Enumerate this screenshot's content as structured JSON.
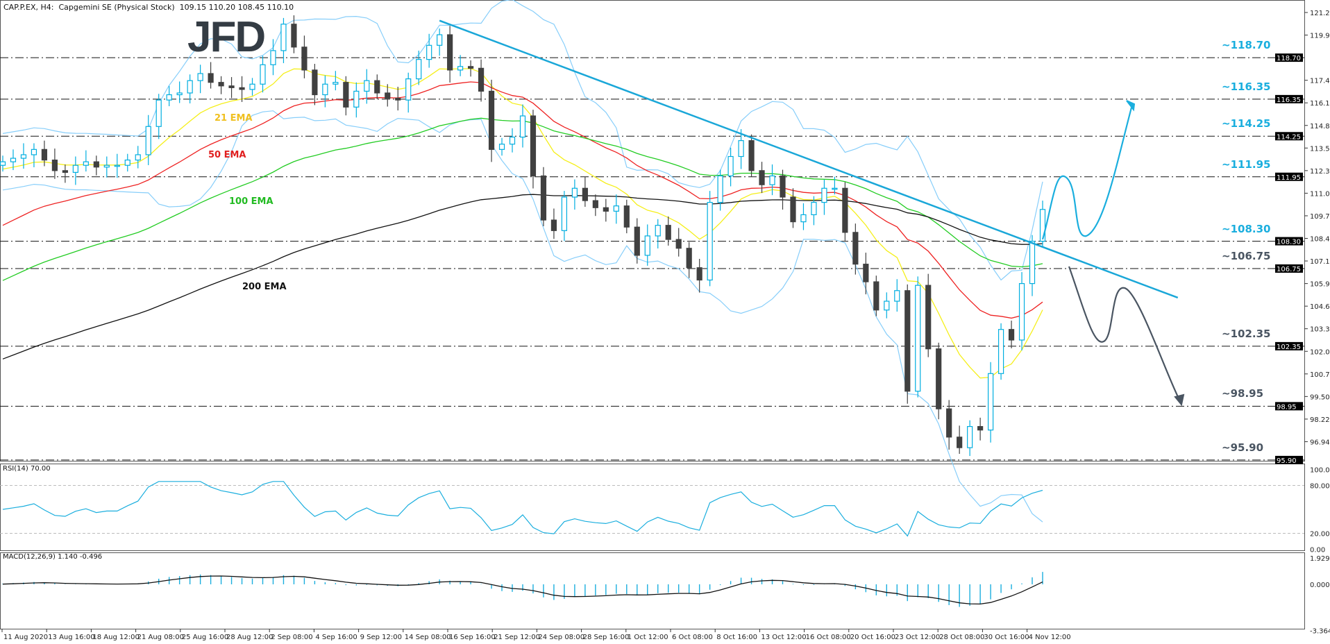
{
  "header": {
    "title": "CAP.P.EX, H4:  Capgemini SE (Physical Stock)  109.15 110.20 108.45 110.10"
  },
  "logo": "JFD",
  "colors": {
    "up": "#00aee0",
    "down": "#404040",
    "bands": "#87cefa",
    "trend": "#1aa7d8",
    "bear": "#4a5562",
    "ema21": "#f5ef1a",
    "ema50": "#ee2222",
    "ema100": "#22cc22",
    "ema200": "#111111"
  },
  "chart_data": {
    "type": "candlestick",
    "timeframe": "H4",
    "ylim": [
      95.4,
      121.8
    ],
    "price_ticks": [
      121.26,
      119.98,
      117.42,
      116.14,
      114.86,
      113.58,
      112.3,
      111.02,
      109.74,
      108.46,
      107.18,
      105.9,
      104.62,
      103.34,
      102.06,
      100.78,
      99.5,
      98.22,
      96.94
    ],
    "x_labels": [
      "11 Aug 2020",
      "13 Aug 16:00",
      "18 Aug 12:00",
      "21 Aug 08:00",
      "25 Aug 16:00",
      "28 Aug 12:00",
      "2 Sep 08:00",
      "4 Sep 16:00",
      "9 Sep 12:00",
      "14 Sep 08:00",
      "16 Sep 16:00",
      "21 Sep 12:00",
      "24 Sep 08:00",
      "28 Sep 16:00",
      "1 Oct 12:00",
      "6 Oct 08:00",
      "8 Oct 16:00",
      "13 Oct 12:00",
      "16 Oct 08:00",
      "20 Oct 16:00",
      "23 Oct 12:00",
      "28 Oct 08:00",
      "30 Oct 16:00",
      "4 Nov 12:00"
    ],
    "closes": [
      112.8,
      113.0,
      113.2,
      113.5,
      112.9,
      112.3,
      112.2,
      112.6,
      112.8,
      112.5,
      112.6,
      112.6,
      112.9,
      113.2,
      114.8,
      116.3,
      116.6,
      116.7,
      117.4,
      117.8,
      117.3,
      117.1,
      117.0,
      116.9,
      117.2,
      118.3,
      119.1,
      120.6,
      119.3,
      118.0,
      116.6,
      117.2,
      117.3,
      115.9,
      116.8,
      117.4,
      116.7,
      116.4,
      116.3,
      117.5,
      118.6,
      119.4,
      120.0,
      118.0,
      118.2,
      118.1,
      116.8,
      113.5,
      113.8,
      114.2,
      115.4,
      112.0,
      109.5,
      108.9,
      110.8,
      111.3,
      110.6,
      110.2,
      110.0,
      110.3,
      109.1,
      107.5,
      108.6,
      109.2,
      108.4,
      107.9,
      106.8,
      106.1,
      110.5,
      112.0,
      113.1,
      114.0,
      112.3,
      111.5,
      112.0,
      110.8,
      109.4,
      109.8,
      110.5,
      111.3,
      111.3,
      108.8,
      107.0,
      106.0,
      104.4,
      104.9,
      105.5,
      99.8,
      105.8,
      102.2,
      98.8,
      97.2,
      96.6,
      97.8,
      97.6,
      100.8,
      103.3,
      102.7,
      105.9,
      108.3,
      110.1
    ],
    "emas": [
      {
        "label": "21 EMA",
        "period": 21,
        "seed": 112.3,
        "color_key": "ema21"
      },
      {
        "label": "50 EMA",
        "period": 50,
        "seed": 108.9,
        "color_key": "ema50"
      },
      {
        "label": "100 EMA",
        "period": 100,
        "seed": 105.8,
        "color_key": "ema100"
      },
      {
        "label": "200 EMA",
        "period": 200,
        "seed": 101.4,
        "color_key": "ema200"
      }
    ],
    "levels": [
      {
        "label": "~118.70",
        "price": 118.7,
        "badge": "118.70",
        "tone": "bull"
      },
      {
        "label": "~116.35",
        "price": 116.35,
        "badge": "116.35",
        "tone": "bull"
      },
      {
        "label": "~114.25",
        "price": 114.25,
        "badge": "114.25",
        "tone": "bull"
      },
      {
        "label": "~111.95",
        "price": 111.95,
        "badge": "111.95",
        "tone": "bull"
      },
      {
        "label": "~108.30",
        "price": 108.3,
        "badge": "108.30",
        "tone": "bull"
      },
      {
        "label": "~106.75",
        "price": 106.75,
        "badge": "106.75",
        "tone": "bear"
      },
      {
        "label": "~102.35",
        "price": 102.35,
        "badge": "102.35",
        "tone": "bear"
      },
      {
        "label": "~98.95",
        "price": 98.95,
        "badge": "98.95",
        "tone": "bear"
      },
      {
        "label": "~95.90",
        "price": 95.9,
        "badge": "95.90",
        "tone": "bear"
      }
    ],
    "trendline": {
      "from": {
        "bar": 42,
        "price": 120.8
      },
      "to": {
        "bar": 113,
        "price": 105.1
      }
    },
    "rsi": {
      "label": "RSI(14) 70.00",
      "ticks": [
        "100.00",
        "80.00",
        "20.00",
        "0.00"
      ],
      "levels": [
        80,
        20
      ]
    },
    "macd": {
      "label": "MACD(12,26,9) 1.140 -0.496",
      "ticks": [
        "1.929",
        "0.000",
        "-3.364"
      ],
      "range": [
        -3.364,
        1.929
      ]
    }
  }
}
